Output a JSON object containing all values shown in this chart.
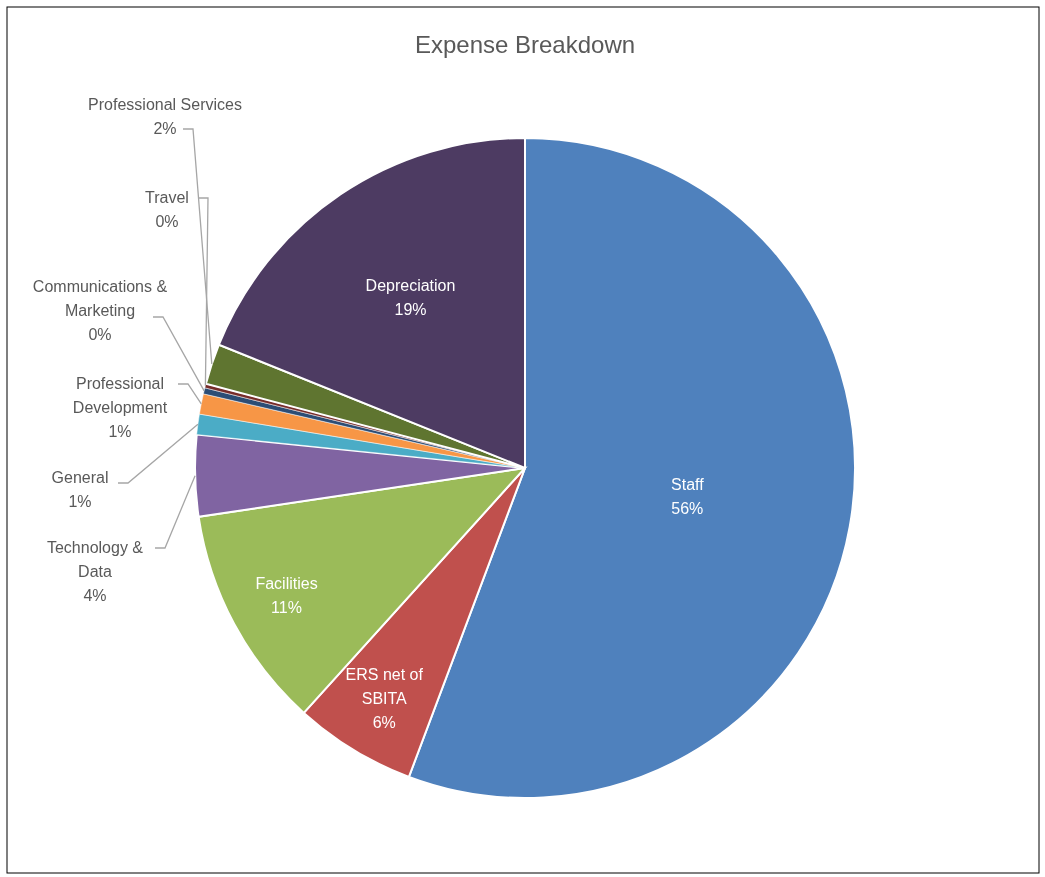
{
  "chart_data": {
    "type": "pie",
    "title": "Expense Breakdown",
    "categories": [
      "Staff",
      "ERS net of SBITA",
      "Facilities",
      "Technology & Data",
      "General",
      "Professional Development",
      "Communications & Marketing",
      "Travel",
      "Professional Services",
      "Depreciation"
    ],
    "values": [
      56,
      6,
      11,
      4,
      1,
      1,
      0.3,
      0.2,
      2,
      19
    ],
    "value_labels": [
      "56%",
      "6%",
      "11%",
      "4%",
      "1%",
      "1%",
      "0%",
      "0%",
      "2%",
      "19%"
    ],
    "colors": [
      "#4f81bd",
      "#c0504d",
      "#9bbb59",
      "#8064a2",
      "#4bacc6",
      "#f79646",
      "#2c4d75",
      "#772c2a",
      "#5f7530",
      "#4d3b62"
    ]
  }
}
